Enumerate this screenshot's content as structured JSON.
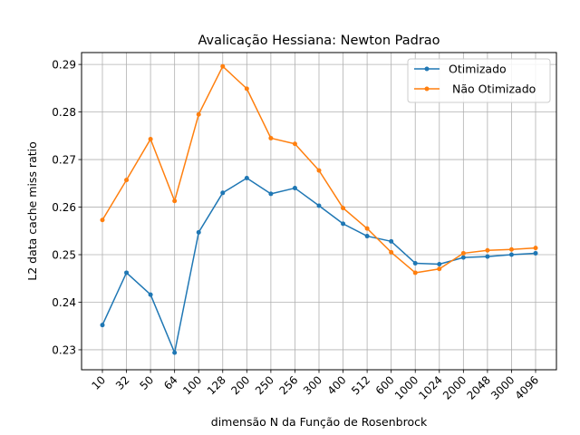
{
  "chart_data": {
    "type": "line",
    "title": "Avalicação Hessiana:  Newton Padrao",
    "xlabel": "dimensão N da Função de Rosenbrock",
    "ylabel": "L2 data cache miss ratio",
    "categories": [
      "10",
      "32",
      "50",
      "64",
      "100",
      "128",
      "200",
      "250",
      "256",
      "300",
      "400",
      "512",
      "600",
      "1000",
      "1024",
      "2000",
      "2048",
      "3000",
      "4096"
    ],
    "ylim": [
      0.2258,
      0.2925
    ],
    "yticks": [
      0.23,
      0.24,
      0.25,
      0.26,
      0.27,
      0.28,
      0.29
    ],
    "grid": true,
    "legend_position": "top-right",
    "series": [
      {
        "name": "Otimizado",
        "color": "#1f77b4",
        "values": [
          0.2352,
          0.2462,
          0.2416,
          0.2294,
          0.2547,
          0.263,
          0.2661,
          0.2628,
          0.264,
          0.2603,
          0.2565,
          0.2539,
          0.2528,
          0.2482,
          0.248,
          0.2494,
          0.2496,
          0.25,
          0.2503
        ]
      },
      {
        "name": " Não Otimizado",
        "color": "#ff7f0e",
        "values": [
          0.2573,
          0.2657,
          0.2743,
          0.2613,
          0.2795,
          0.2896,
          0.2849,
          0.2745,
          0.2733,
          0.2677,
          0.2598,
          0.2555,
          0.2505,
          0.2462,
          0.247,
          0.2503,
          0.2509,
          0.2511,
          0.2514
        ]
      }
    ]
  }
}
